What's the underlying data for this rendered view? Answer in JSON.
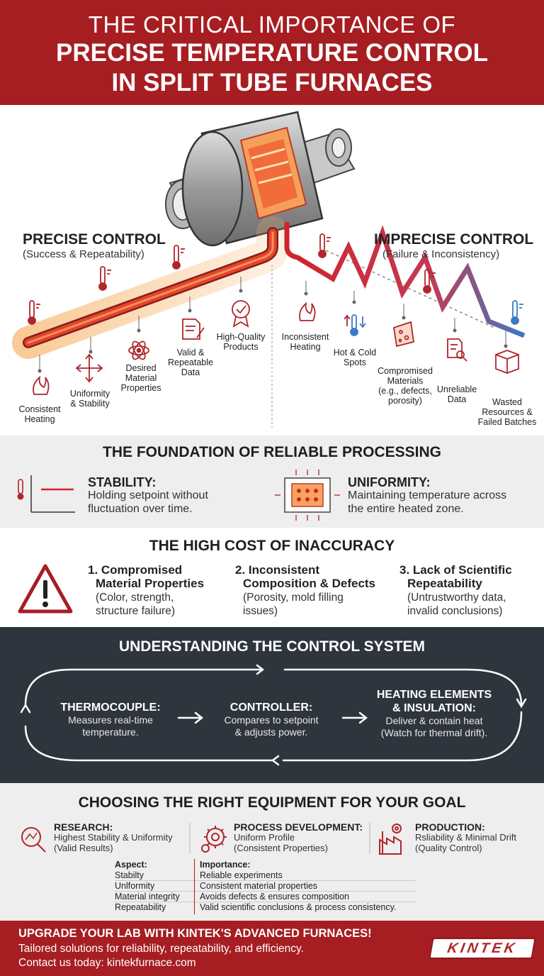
{
  "header": {
    "line1": "THE CRITICAL IMPORTANCE OF",
    "line2": "PRECISE TEMPERATURE CONTROL",
    "line3": "IN SPLIT TUBE FURNACES"
  },
  "hero": {
    "precise": {
      "title": "PRECISE CONTROL",
      "subtitle": "(Success & Repeatability)",
      "items": [
        {
          "l1": "Consistent",
          "l2": "Heating",
          "l3": ""
        },
        {
          "l1": "Uniformity",
          "l2": "& Stability",
          "l3": ""
        },
        {
          "l1": "Desired",
          "l2": "Material",
          "l3": "Properties"
        },
        {
          "l1": "Valid &",
          "l2": "Repeatable",
          "l3": "Data"
        },
        {
          "l1": "High-Quality",
          "l2": "Products",
          "l3": ""
        }
      ]
    },
    "imprecise": {
      "title": "IMPRECISE CONTROL",
      "subtitle": "(Failure & Inconsistency)",
      "items": [
        {
          "l1": "Inconsistent",
          "l2": "Heating",
          "l3": "",
          "l4": ""
        },
        {
          "l1": "Hot & Cold",
          "l2": "Spots",
          "l3": "",
          "l4": ""
        },
        {
          "l1": "Compromised",
          "l2": "Materials",
          "l3": "(e.g., defects,",
          "l4": "porosity)"
        },
        {
          "l1": "Unreliable",
          "l2": "Data",
          "l3": "",
          "l4": ""
        },
        {
          "l1": "Wasted",
          "l2": "Resources &",
          "l3": "Failed Batches",
          "l4": ""
        }
      ]
    }
  },
  "foundation": {
    "title": "THE FOUNDATION OF RELIABLE PROCESSING",
    "stability": {
      "title": "STABILITY:",
      "l1": "Holding setpoint without",
      "l2": "fluctuation over time."
    },
    "uniformity": {
      "title": "UNIFORMITY:",
      "l1": "Maintaining temperature across",
      "l2": "the entire heated zone."
    }
  },
  "cost": {
    "title": "THE HIGH COST OF INACCURACY",
    "items": [
      {
        "t1": "1. Compromised",
        "t2": "Material Properties",
        "d1": "(Color, strength,",
        "d2": "structure failure)"
      },
      {
        "t1": "2. Inconsistent",
        "t2": "Composition & Defects",
        "d1": "(Porosity, mold filling",
        "d2": "issues)"
      },
      {
        "t1": "3. Lack of Scientific",
        "t2": "Repeatability",
        "d1": "(Untrustworthy data,",
        "d2": "invalid conclusions)"
      }
    ]
  },
  "control": {
    "title": "UNDERSTANDING THE CONTROL SYSTEM",
    "thermo": {
      "t1": "THERMOCOUPLE:",
      "d1": "Measures real-time",
      "d2": "temperature."
    },
    "controller": {
      "t1": "CONTROLLER:",
      "d1": "Compares to setpoint",
      "d2": "& adjusts power."
    },
    "heating": {
      "t1": "HEATING ELEMENTS",
      "t2": "& INSULATION:",
      "d1": "Deliver & contain heat",
      "d2": "(Watch for thermal drift)."
    }
  },
  "equipment": {
    "title": "CHOOSING THE RIGHT EQUIPMENT FOR YOUR GOAL",
    "research": {
      "title": "RESEARCH:",
      "d1": "Highest Stability & Uniformity",
      "d2": "(Valid Results)"
    },
    "process": {
      "title": "PROCESS DEVELOPMENT:",
      "d1": "Uniform Profile",
      "d2": "(Consistent Properties)"
    },
    "production": {
      "title": "PRODUCTION:",
      "d1": "Rsliability & Minimal Drift",
      "d2": "(Quality Control)"
    },
    "table": {
      "head_aspect": "Aspect:",
      "head_importance": "Importance:",
      "rows": [
        {
          "aspect": "Stabilty",
          "importance": "Reliable experiments"
        },
        {
          "aspect": "Unlformity",
          "importance": "Consistent material properties"
        },
        {
          "aspect": "Material integrity",
          "importance": "Avoids defects & ensures composition"
        },
        {
          "aspect": "Repeatability",
          "importance": "Valid scientific conclusions & process consistency."
        }
      ]
    }
  },
  "footer": {
    "headline": "UPGRADE YOUR LAB WITH KINTEK'S ADVANCED FURNACES!",
    "line2": "Tailored solutions for reliability, repeatability, and efficiency.",
    "line3": "Contact us today: kintekfurnace.com",
    "logo": "KINTEK"
  },
  "colors": {
    "brand_red": "#a61e22",
    "dark_panel": "#2f353d",
    "light_panel": "#eeeeee"
  }
}
